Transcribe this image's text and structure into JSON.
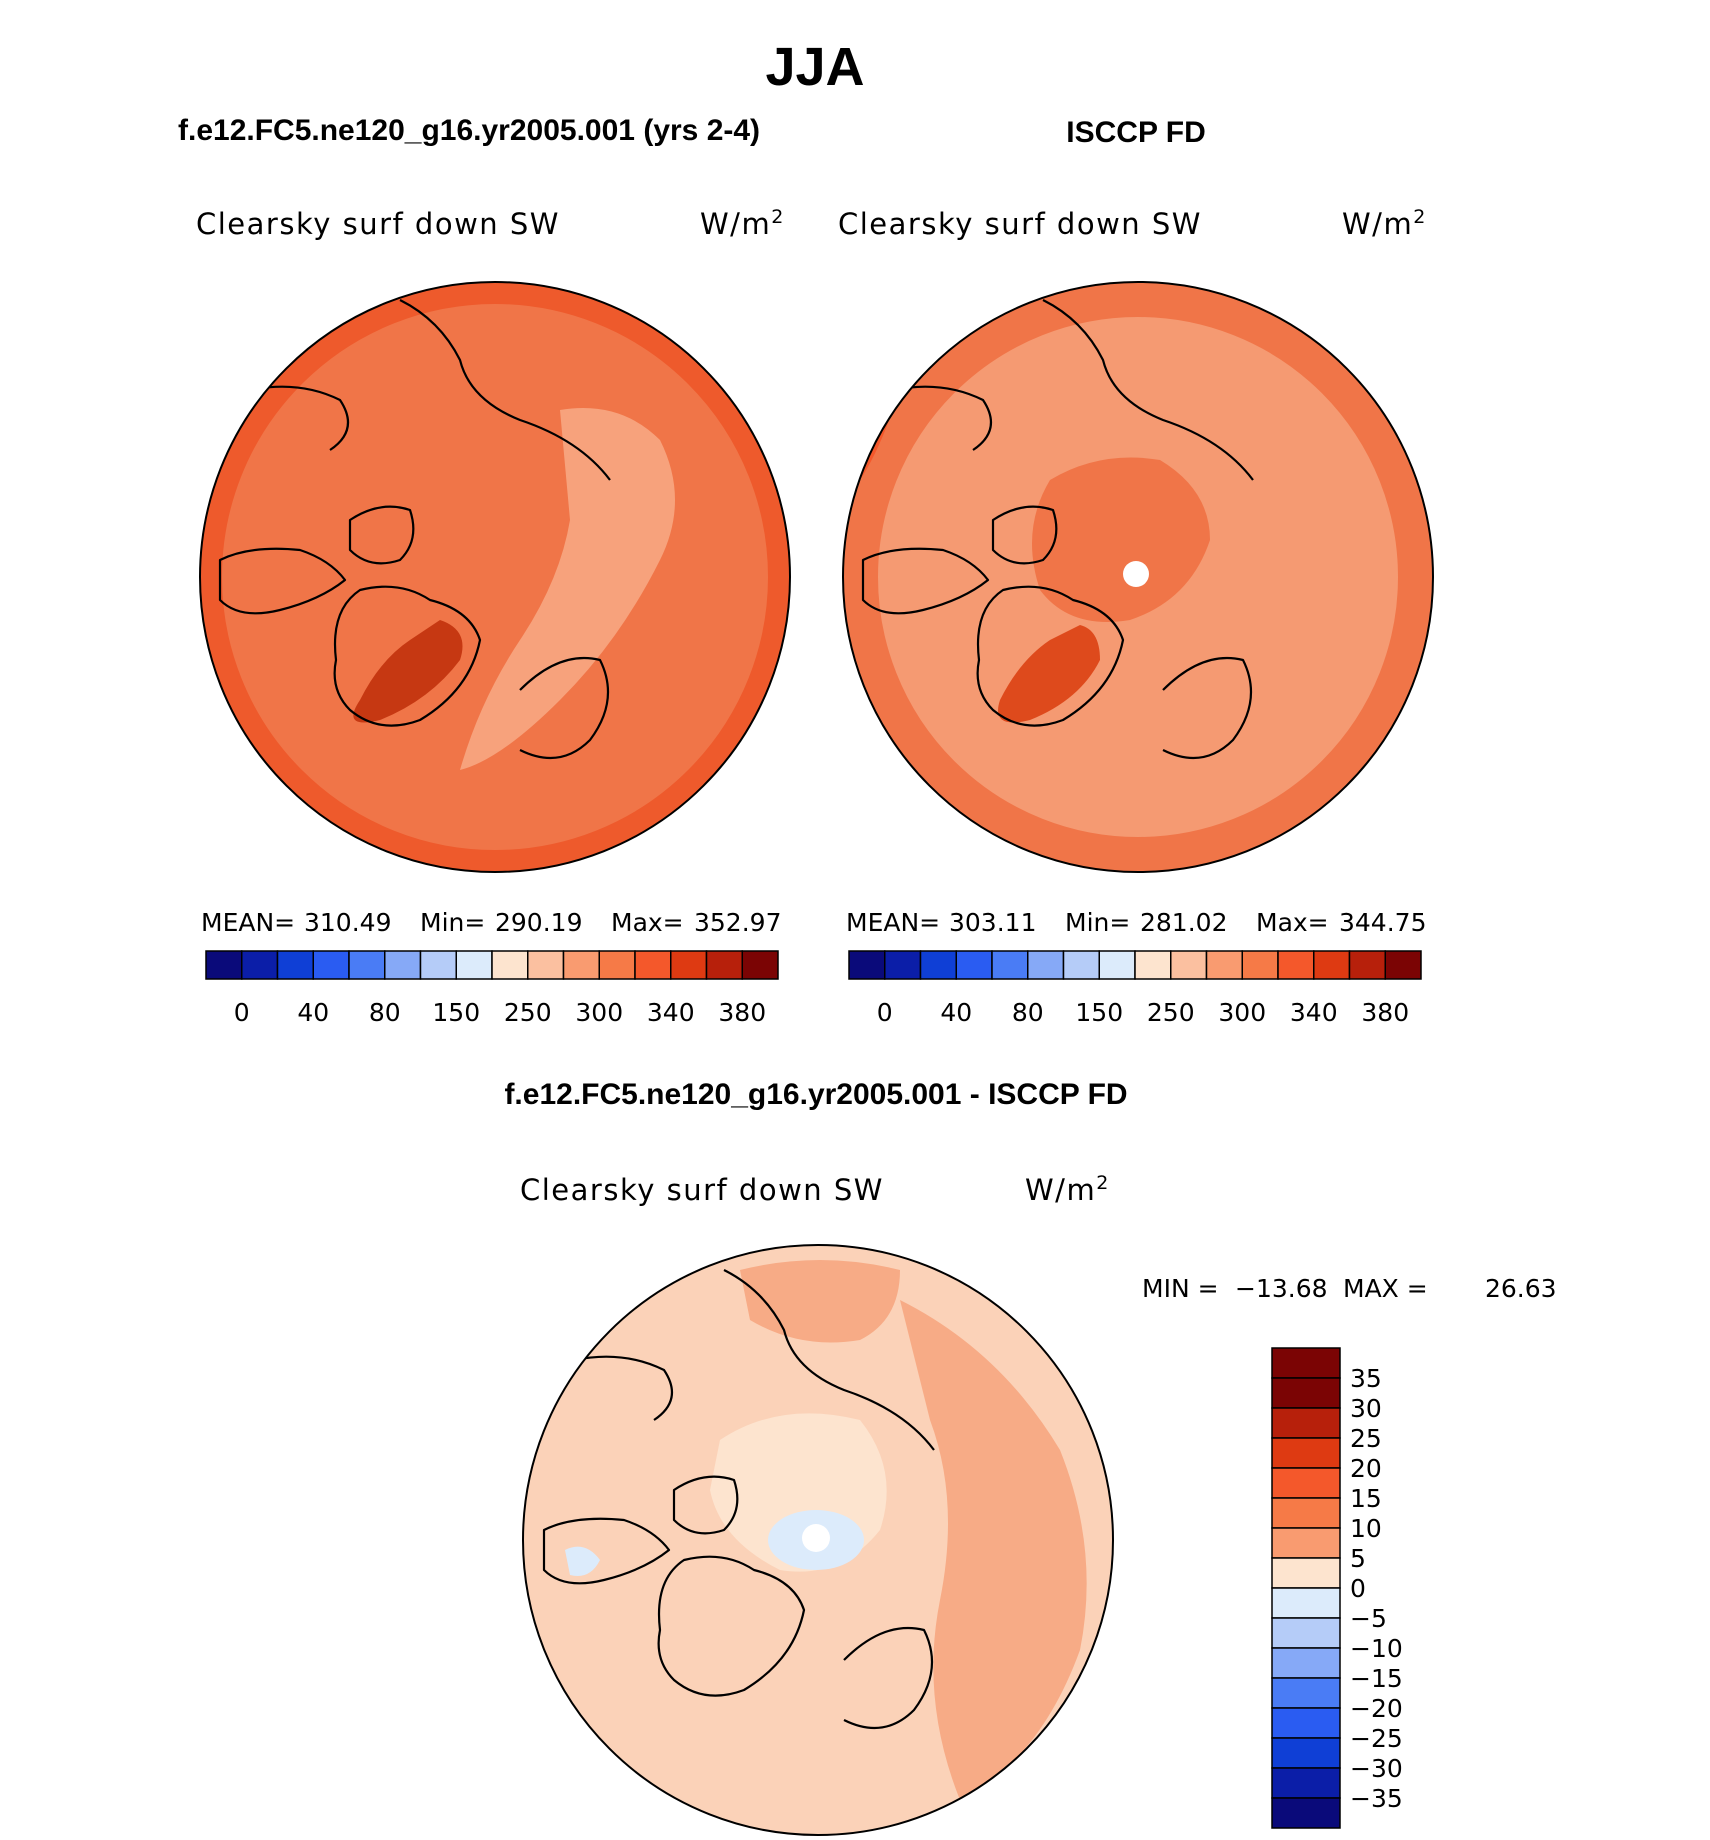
{
  "page": {
    "season": "JJA"
  },
  "chart_data": [
    {
      "type": "polar-contour-map",
      "panel_title": "f.e12.FC5.ne120_g16.yr2005.001 (yrs 2-4)",
      "variable": "Clearsky surf down SW",
      "units_base": "W/m",
      "units_exp": "2",
      "mean_label": "MEAN=",
      "mean": "310.49",
      "min_label": "Min=",
      "min": "290.19",
      "max_label": "Max=",
      "max": "352.97",
      "colorbar": {
        "colors": [
          "#0a0a7a",
          "#0b1ea8",
          "#0f3fd6",
          "#2a5cf2",
          "#4a7cf5",
          "#86a9f7",
          "#b5ccf8",
          "#dcebfb",
          "#fde4cf",
          "#fbc0a0",
          "#f99b70",
          "#f67a47",
          "#f4582b",
          "#de3a12",
          "#b7200b",
          "#7b0404"
        ],
        "tick_labels": [
          "0",
          "40",
          "80",
          "150",
          "250",
          "300",
          "340",
          "380"
        ]
      },
      "field_fill": "#f07548"
    },
    {
      "type": "polar-contour-map",
      "panel_title": "ISCCP FD",
      "variable": "Clearsky surf down SW",
      "units_base": "W/m",
      "units_exp": "2",
      "mean_label": "MEAN=",
      "mean": "303.11",
      "min_label": "Min=",
      "min": "281.02",
      "max_label": "Max=",
      "max": "344.75",
      "colorbar": {
        "colors": [
          "#0a0a7a",
          "#0b1ea8",
          "#0f3fd6",
          "#2a5cf2",
          "#4a7cf5",
          "#86a9f7",
          "#b5ccf8",
          "#dcebfb",
          "#fde4cf",
          "#fbc0a0",
          "#f99b70",
          "#f67a47",
          "#f4582b",
          "#de3a12",
          "#b7200b",
          "#7b0404"
        ],
        "tick_labels": [
          "0",
          "40",
          "80",
          "150",
          "250",
          "300",
          "340",
          "380"
        ]
      },
      "field_fill": "#f59a72"
    },
    {
      "type": "polar-contour-map-difference",
      "panel_title": "f.e12.FC5.ne120_g16.yr2005.001 - ISCCP FD",
      "variable": "Clearsky surf down SW",
      "units_base": "W/m",
      "units_exp": "2",
      "min_label": "MIN =",
      "min": "−13.68",
      "max_label": "MAX =",
      "max": "26.63",
      "colorbar": {
        "colors": [
          "#7b0404",
          "#b7200b",
          "#de3a12",
          "#f4582b",
          "#f67a47",
          "#f99b70",
          "#fde4cf",
          "#dcebfb",
          "#b5ccf8",
          "#86a9f7",
          "#4a7cf5",
          "#2a5cf2",
          "#0f3fd6",
          "#0b1ea8",
          "#0a0a7a"
        ],
        "tick_labels": [
          "35",
          "30",
          "25",
          "20",
          "15",
          "10",
          "5",
          "0",
          "−5",
          "−10",
          "−15",
          "−20",
          "−25",
          "−30",
          "−35"
        ]
      },
      "field_fill": "#fbd2b8"
    }
  ]
}
